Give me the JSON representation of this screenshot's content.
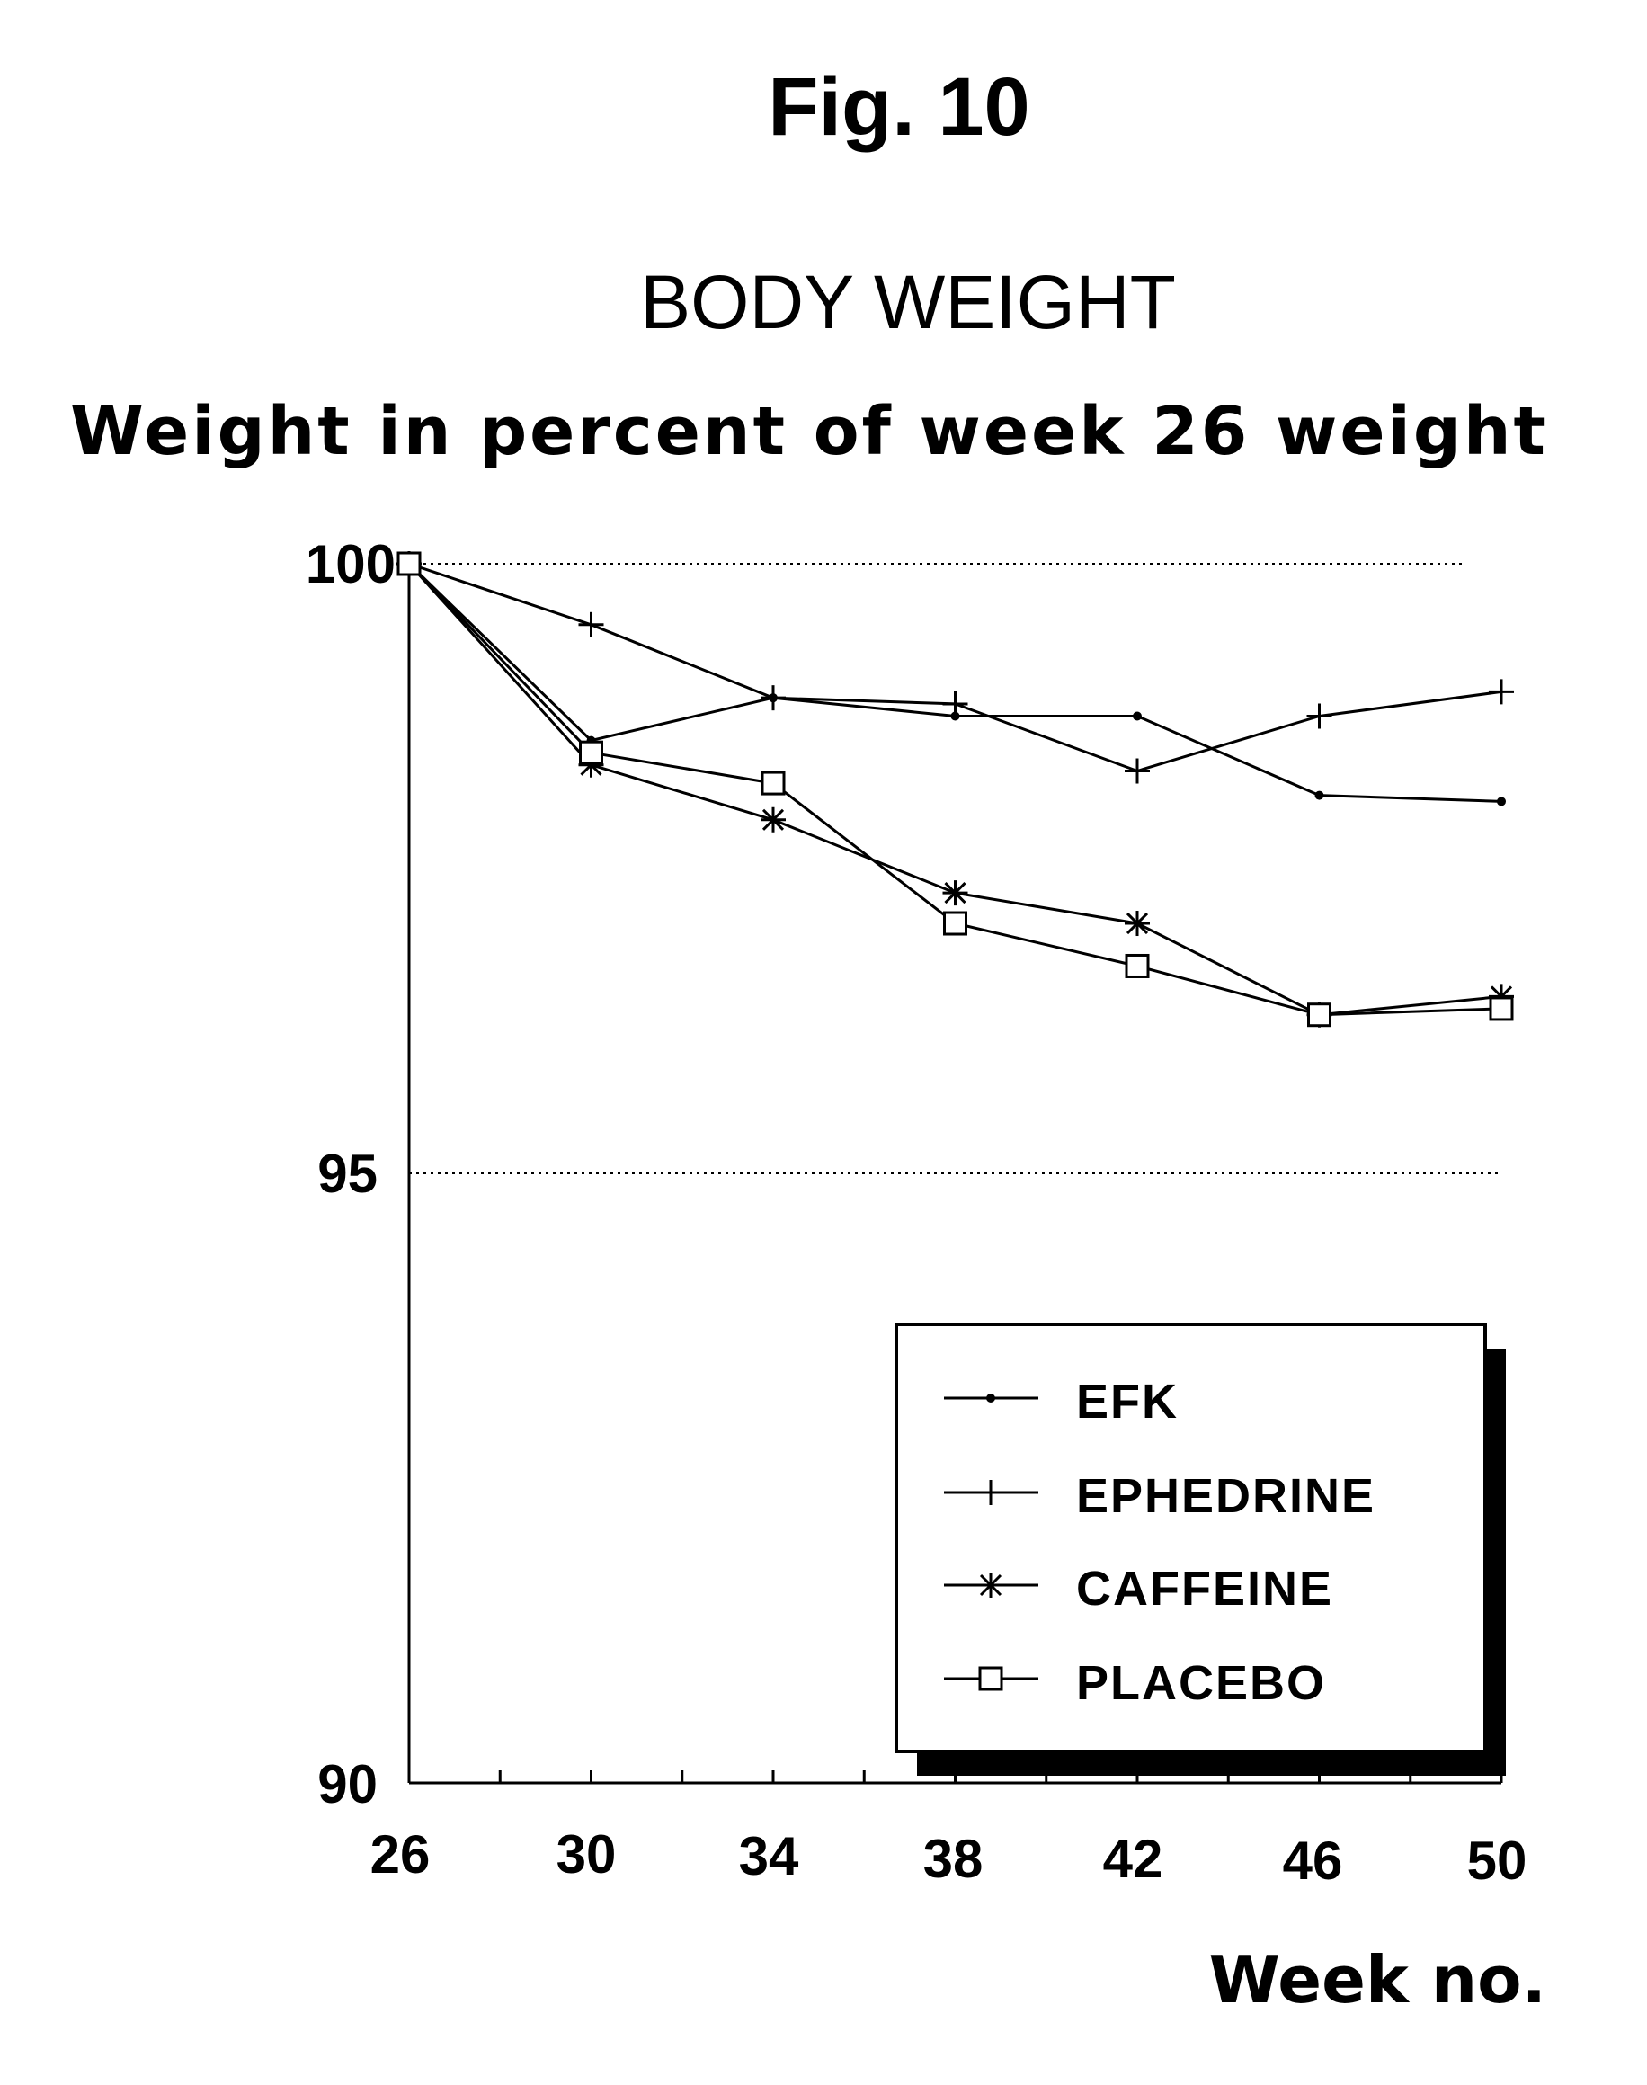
{
  "chart_data": {
    "type": "line",
    "figure_label": "Fig. 10",
    "title": "BODY WEIGHT",
    "subtitle": "Weight in percent of week 26 weight",
    "xlabel": "Week no.",
    "ylabel": "",
    "x": [
      26,
      30,
      34,
      38,
      42,
      46,
      50
    ],
    "xticks": [
      "26",
      "30",
      "34",
      "38",
      "42",
      "46",
      "50"
    ],
    "yticks": [
      "90",
      "95",
      "100"
    ],
    "xlim": [
      26,
      50
    ],
    "ylim": [
      90,
      100
    ],
    "grid": "dotted horizontal at 95 and 100",
    "legend_position": "bottom-right",
    "series": [
      {
        "name": "EFK",
        "marker": "dot",
        "values": [
          100,
          98.55,
          98.9,
          98.75,
          98.75,
          98.1,
          98.05
        ]
      },
      {
        "name": "EPHEDRINE",
        "marker": "plus",
        "values": [
          100,
          99.5,
          98.9,
          98.85,
          98.3,
          98.75,
          98.95
        ]
      },
      {
        "name": "CAFFEINE",
        "marker": "asterisk",
        "values": [
          100,
          98.35,
          97.9,
          97.3,
          97.05,
          96.3,
          96.45
        ]
      },
      {
        "name": "PLACEBO",
        "marker": "square",
        "values": [
          100,
          98.45,
          98.2,
          97.05,
          96.7,
          96.3,
          96.35
        ]
      }
    ]
  }
}
